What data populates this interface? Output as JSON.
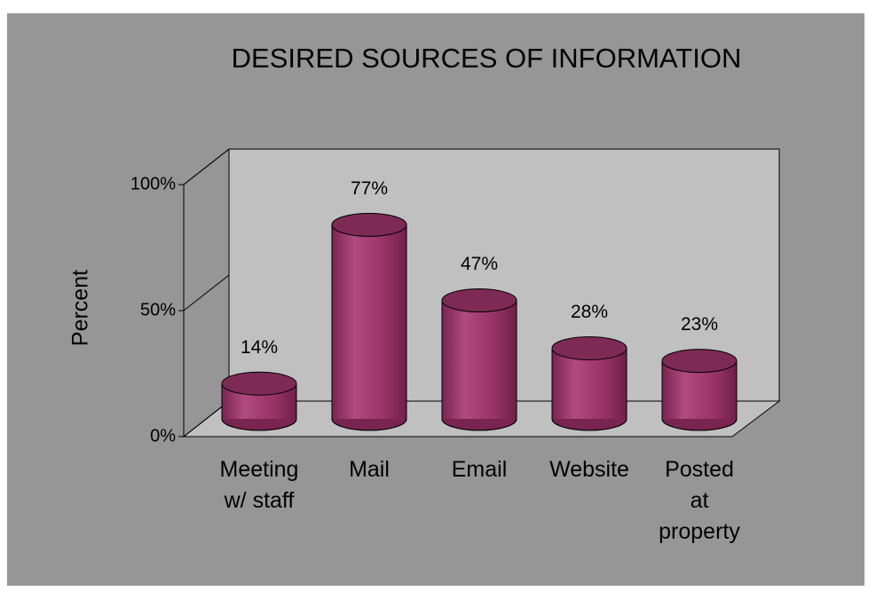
{
  "chart_data": {
    "type": "bar",
    "title": "DESIRED SOURCES OF INFORMATION",
    "y_label": "Percent",
    "categories": [
      "Meeting w/ staff",
      "Mail",
      "Email",
      "Website",
      "Posted at property"
    ],
    "values": [
      14,
      77,
      47,
      28,
      23
    ],
    "value_labels": [
      "14%",
      "77%",
      "47%",
      "28%",
      "23%"
    ],
    "color": "#993366",
    "ylim": [
      0,
      100
    ],
    "yticks": [
      {
        "value": 0,
        "label": "0%"
      },
      {
        "value": 50,
        "label": "50%"
      },
      {
        "value": 100,
        "label": "100%"
      }
    ]
  }
}
